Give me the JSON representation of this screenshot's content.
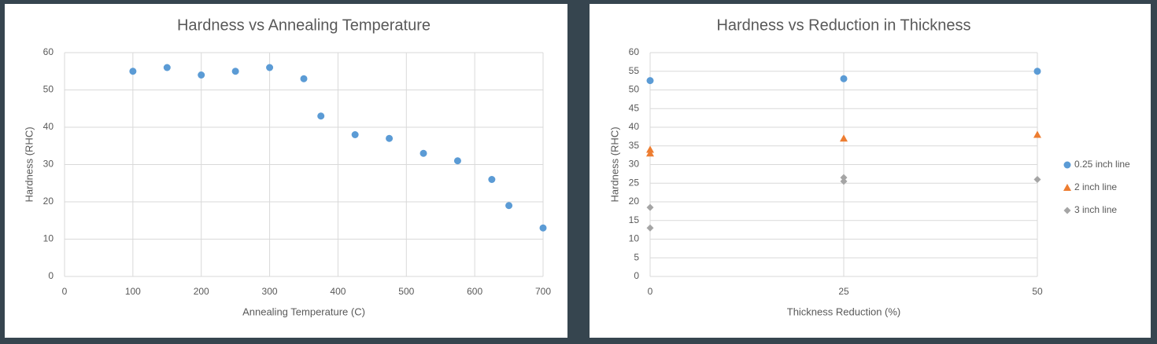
{
  "chart_data": [
    {
      "type": "scatter",
      "title": "Hardness vs Annealing Temperature",
      "x_label": "Annealing Temperature  (C)",
      "y_label": "Hardness (RHC)",
      "x": [
        100,
        150,
        200,
        250,
        300,
        350,
        375,
        425,
        475,
        525,
        575,
        625,
        650,
        700
      ],
      "values": [
        55,
        56,
        54,
        55,
        56,
        53,
        43,
        38,
        37,
        33,
        31,
        26,
        19,
        13
      ],
      "color": "#5b9bd5",
      "marker": "circle",
      "xlim": [
        0,
        700
      ],
      "xticks": [
        0,
        100,
        200,
        300,
        400,
        500,
        600,
        700
      ],
      "ylim": [
        0,
        60
      ],
      "yticks": [
        0,
        10,
        20,
        30,
        40,
        50,
        60
      ],
      "grid": true
    },
    {
      "type": "scatter",
      "title": "Hardness vs Reduction in Thickness",
      "x_label": "Thickness Reduction (%)",
      "y_label": "Hardness (RHC)",
      "series": [
        {
          "name": "0.25 inch line",
          "color": "#5b9bd5",
          "marker": "circle",
          "x": [
            0,
            25,
            50
          ],
          "values": [
            52.5,
            53,
            55
          ]
        },
        {
          "name": "2 inch line",
          "color": "#ed7d31",
          "marker": "triangle",
          "x": [
            0,
            0,
            25,
            50
          ],
          "values": [
            34,
            33,
            37,
            38
          ]
        },
        {
          "name": "3 inch line",
          "color": "#a5a5a5",
          "marker": "diamond",
          "x": [
            0,
            0,
            25,
            25,
            50
          ],
          "values": [
            18.5,
            13,
            26.5,
            25.5,
            26
          ]
        }
      ],
      "xlim": [
        0,
        50
      ],
      "xticks": [
        0,
        25,
        50
      ],
      "ylim": [
        0,
        60
      ],
      "yticks": [
        0,
        5,
        10,
        15,
        20,
        25,
        30,
        35,
        40,
        45,
        50,
        55,
        60
      ],
      "grid": true,
      "legend": "right"
    }
  ]
}
